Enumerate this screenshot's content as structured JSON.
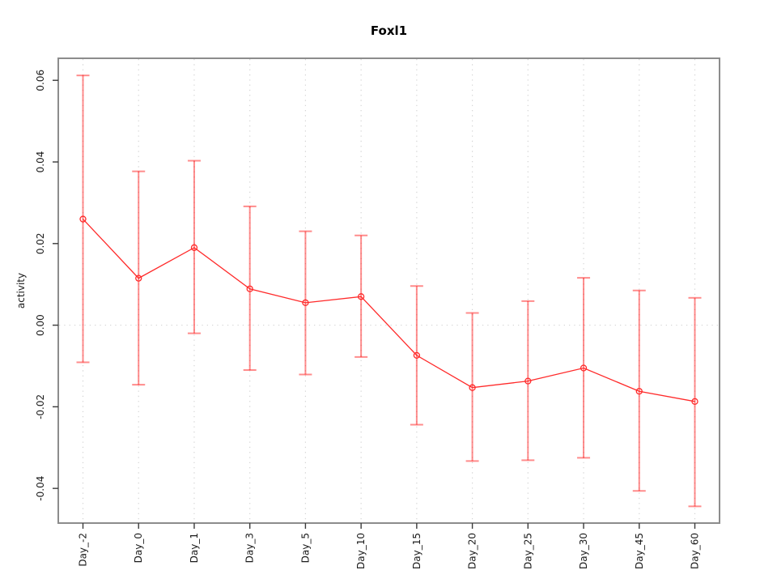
{
  "chart_data": {
    "type": "line",
    "title": "Foxl1",
    "xlabel": "",
    "ylabel": "activity",
    "categories": [
      "Day_-2",
      "Day_0",
      "Day_1",
      "Day_3",
      "Day_5",
      "Day_10",
      "Day_15",
      "Day_20",
      "Day_25",
      "Day_30",
      "Day_45",
      "Day_60"
    ],
    "series": [
      {
        "name": "activity",
        "marker": "open-circle",
        "values": [
          0.026,
          0.0115,
          0.019,
          0.0089,
          0.0055,
          0.007,
          -0.0074,
          -0.0153,
          -0.0137,
          -0.0105,
          -0.0162,
          -0.0187
        ],
        "upper": [
          0.0612,
          0.0377,
          0.0403,
          0.0291,
          0.023,
          0.022,
          0.0096,
          0.003,
          0.0059,
          0.0116,
          0.0085,
          0.0067
        ],
        "lower": [
          -0.0091,
          -0.0146,
          -0.002,
          -0.011,
          -0.0121,
          -0.0078,
          -0.0244,
          -0.0333,
          -0.0331,
          -0.0325,
          -0.0406,
          -0.0444
        ]
      }
    ],
    "yticks": [
      -0.04,
      -0.02,
      0,
      0.02,
      0.04,
      0.06
    ],
    "ytick_labels": [
      "-0.04",
      "-0.02",
      "0.00",
      "0.02",
      "0.04",
      "0.06"
    ],
    "ylim": [
      -0.0485,
      0.0654
    ],
    "grid": {
      "vertical": "dotted line at every category",
      "horizontal": "dotted line at y = 0 only"
    },
    "legend": "none",
    "colors": {
      "series": "#ff2a2a",
      "errorbar": "#ff0000",
      "errorbar_alpha": 0.45,
      "grid": "#d4d4d4",
      "box": "#8c8c8c",
      "tick": "#3a3a3a",
      "text": "#1a1a1a"
    }
  }
}
